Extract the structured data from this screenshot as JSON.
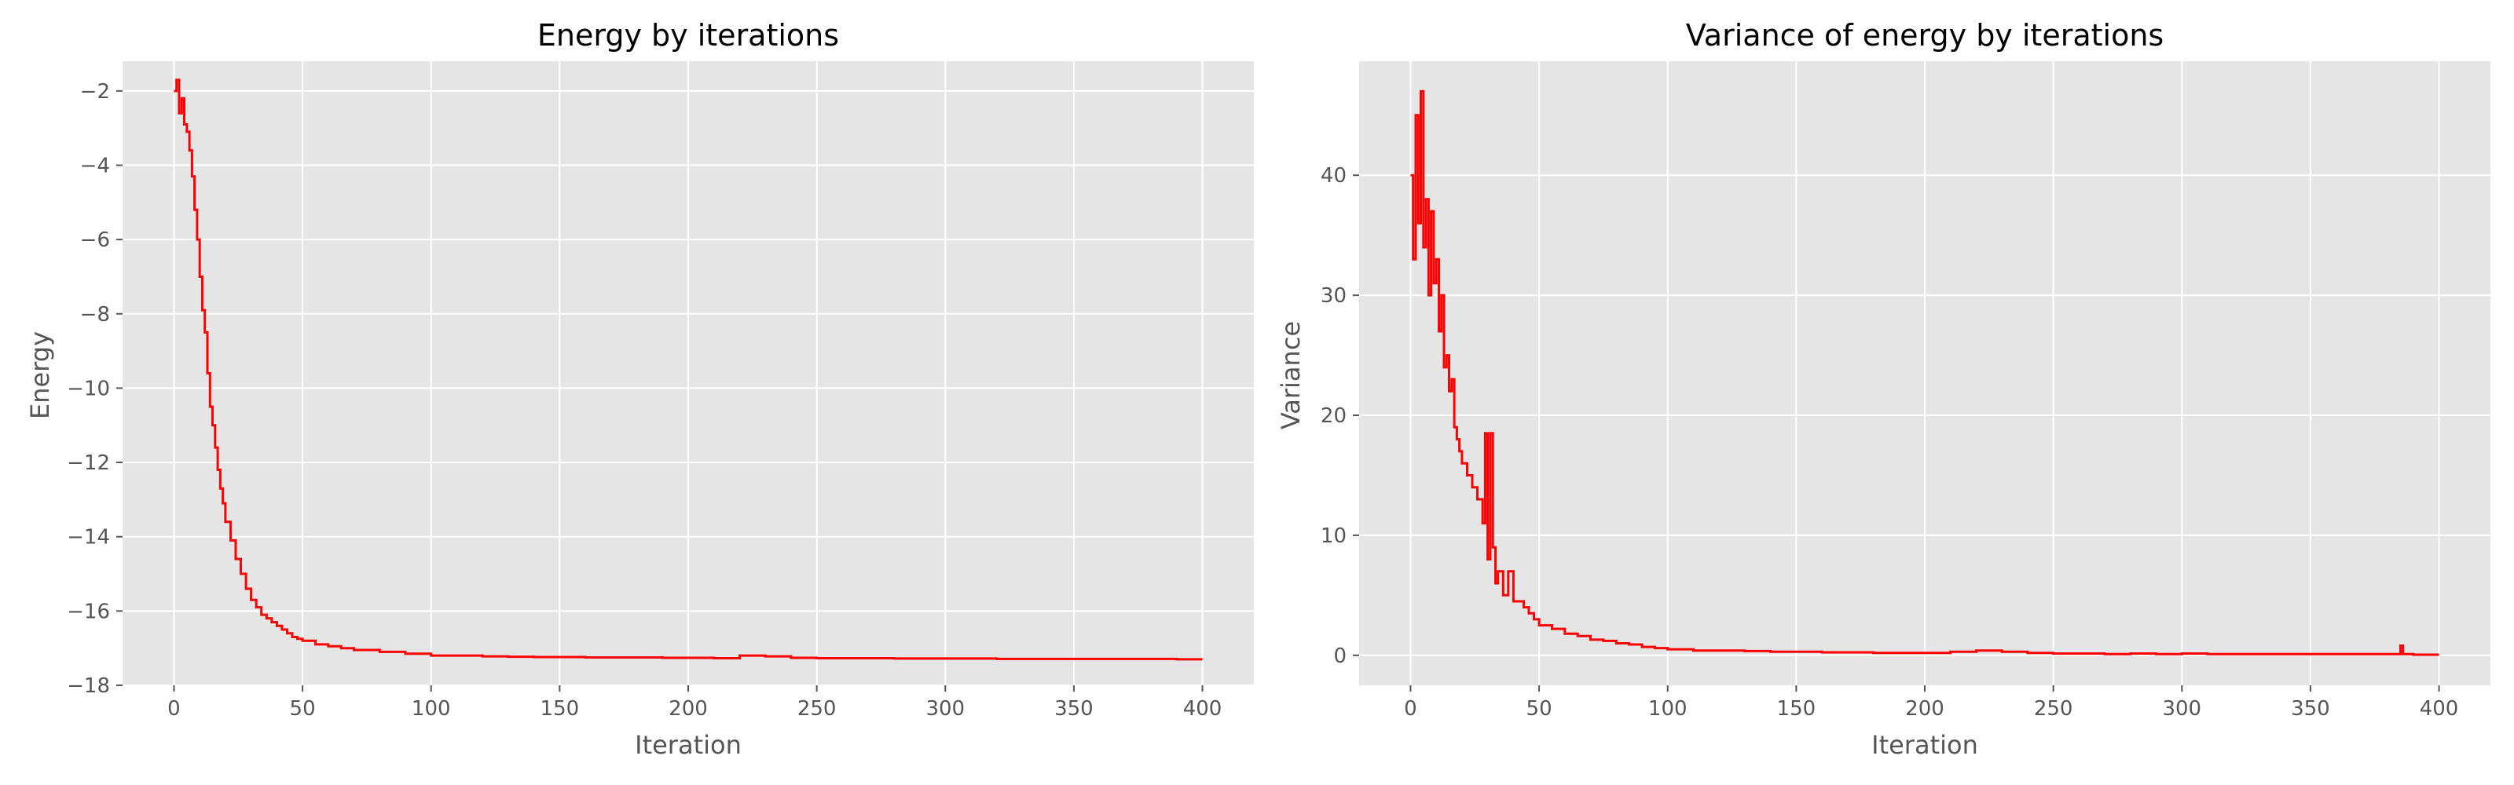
{
  "colors": {
    "figure_background": "#ffffff",
    "plot_background": "#e5e5e5",
    "grid": "#ffffff",
    "line": "#ff0000",
    "tick_text": "#555555",
    "title_text": "#000000"
  },
  "chart_data": [
    {
      "type": "line",
      "title": "Energy by iterations",
      "xlabel": "Iteration",
      "ylabel": "Energy",
      "xlim": [
        -20,
        420
      ],
      "ylim": [
        -18,
        -1.2
      ],
      "xticks": [
        0,
        50,
        100,
        150,
        200,
        250,
        300,
        350,
        400
      ],
      "xtick_labels": [
        "0",
        "50",
        "100",
        "150",
        "200",
        "250",
        "300",
        "350",
        "400"
      ],
      "yticks": [
        -18,
        -16,
        -14,
        -12,
        -10,
        -8,
        -6,
        -4,
        -2
      ],
      "ytick_labels": [
        "−18",
        "−16",
        "−14",
        "−12",
        "−10",
        "−8",
        "−6",
        "−4",
        "−2"
      ],
      "grid": true,
      "drawstyle": "steps",
      "series": [
        {
          "color": "#ff0000",
          "x": [
            0,
            1,
            2,
            3,
            4,
            5,
            6,
            7,
            8,
            9,
            10,
            11,
            12,
            13,
            14,
            15,
            16,
            17,
            18,
            19,
            20,
            22,
            24,
            26,
            28,
            30,
            32,
            34,
            36,
            38,
            40,
            42,
            44,
            46,
            48,
            50,
            55,
            60,
            65,
            70,
            75,
            80,
            85,
            90,
            95,
            100,
            110,
            120,
            130,
            140,
            150,
            160,
            170,
            180,
            190,
            200,
            210,
            220,
            230,
            240,
            250,
            260,
            270,
            280,
            290,
            300,
            310,
            320,
            330,
            340,
            350,
            360,
            370,
            380,
            390,
            400
          ],
          "y": [
            -2.0,
            -1.7,
            -2.6,
            -2.2,
            -2.9,
            -3.1,
            -3.6,
            -4.3,
            -5.2,
            -6.0,
            -7.0,
            -7.9,
            -8.5,
            -9.6,
            -10.5,
            -11.0,
            -11.6,
            -12.2,
            -12.7,
            -13.1,
            -13.6,
            -14.1,
            -14.6,
            -15.0,
            -15.4,
            -15.7,
            -15.9,
            -16.1,
            -16.2,
            -16.3,
            -16.4,
            -16.5,
            -16.6,
            -16.7,
            -16.75,
            -16.8,
            -16.9,
            -16.95,
            -17.0,
            -17.05,
            -17.05,
            -17.1,
            -17.1,
            -17.15,
            -17.15,
            -17.2,
            -17.2,
            -17.22,
            -17.23,
            -17.24,
            -17.24,
            -17.25,
            -17.25,
            -17.25,
            -17.26,
            -17.26,
            -17.27,
            -17.2,
            -17.22,
            -17.26,
            -17.27,
            -17.27,
            -17.27,
            -17.28,
            -17.28,
            -17.28,
            -17.28,
            -17.29,
            -17.29,
            -17.29,
            -17.29,
            -17.29,
            -17.29,
            -17.29,
            -17.3,
            -17.3
          ]
        }
      ]
    },
    {
      "type": "line",
      "title": "Variance of energy by iterations",
      "xlabel": "Iteration",
      "ylabel": "Variance",
      "xlim": [
        -20,
        420
      ],
      "ylim": [
        -2.5,
        49.5
      ],
      "xticks": [
        0,
        50,
        100,
        150,
        200,
        250,
        300,
        350,
        400
      ],
      "xtick_labels": [
        "0",
        "50",
        "100",
        "150",
        "200",
        "250",
        "300",
        "350",
        "400"
      ],
      "yticks": [
        0,
        10,
        20,
        30,
        40
      ],
      "ytick_labels": [
        "0",
        "10",
        "20",
        "30",
        "40"
      ],
      "grid": true,
      "drawstyle": "steps",
      "series": [
        {
          "color": "#ff0000",
          "x": [
            0,
            1,
            2,
            3,
            4,
            5,
            6,
            7,
            8,
            9,
            10,
            11,
            12,
            13,
            14,
            15,
            16,
            17,
            18,
            19,
            20,
            22,
            24,
            26,
            28,
            29,
            30,
            31,
            32,
            33,
            34,
            36,
            38,
            40,
            42,
            44,
            46,
            48,
            50,
            55,
            60,
            65,
            70,
            75,
            80,
            85,
            90,
            95,
            100,
            110,
            120,
            130,
            140,
            150,
            160,
            170,
            180,
            190,
            200,
            210,
            220,
            230,
            240,
            250,
            260,
            270,
            280,
            290,
            300,
            310,
            320,
            330,
            340,
            350,
            360,
            370,
            380,
            385,
            386,
            390,
            400
          ],
          "y": [
            40,
            33,
            45,
            36,
            47,
            34,
            38,
            30,
            37,
            31,
            33,
            27,
            30,
            24,
            25,
            22,
            23,
            19,
            18,
            17,
            16,
            15,
            14,
            13,
            11,
            18.5,
            8,
            18.5,
            9,
            6,
            7,
            5,
            7,
            4.5,
            4.5,
            4,
            3.5,
            3,
            2.5,
            2.2,
            1.8,
            1.6,
            1.3,
            1.2,
            1.0,
            0.9,
            0.7,
            0.6,
            0.5,
            0.4,
            0.4,
            0.35,
            0.3,
            0.3,
            0.25,
            0.25,
            0.2,
            0.2,
            0.2,
            0.3,
            0.4,
            0.3,
            0.2,
            0.15,
            0.15,
            0.1,
            0.15,
            0.1,
            0.15,
            0.1,
            0.1,
            0.1,
            0.1,
            0.1,
            0.1,
            0.1,
            0.1,
            0.8,
            0.1,
            0.05,
            0.05
          ]
        }
      ]
    }
  ]
}
